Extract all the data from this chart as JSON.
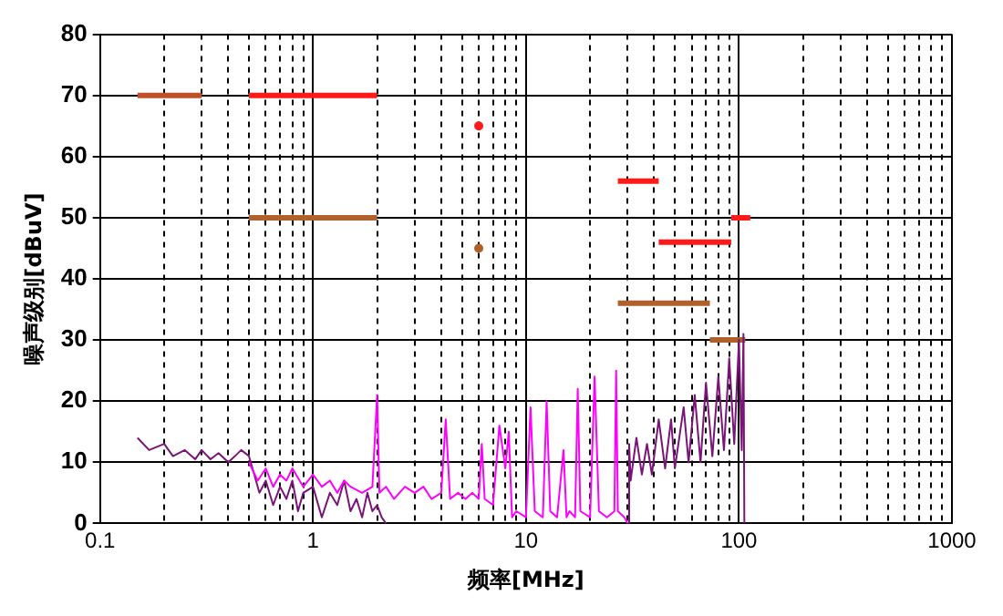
{
  "chart_data": {
    "type": "line",
    "xlabel": "频率[MHz]",
    "ylabel": "噪声级别[dBuV]",
    "log": "x",
    "grid": true,
    "legend": false,
    "line_style": "solid",
    "marker": "none",
    "xlim": [
      0.1,
      1000
    ],
    "ylim": [
      0,
      80
    ],
    "xticks": [
      {
        "value": 0.1,
        "label": "0.1"
      },
      {
        "value": 0.2,
        "label": null
      },
      {
        "value": 0.3,
        "label": null
      },
      {
        "value": 0.4,
        "label": null
      },
      {
        "value": 0.5,
        "label": null
      },
      {
        "value": 0.6,
        "label": null
      },
      {
        "value": 0.7,
        "label": null
      },
      {
        "value": 0.8,
        "label": null
      },
      {
        "value": 0.9,
        "label": null
      },
      1,
      {
        "value": 2,
        "label": null
      },
      {
        "value": 3,
        "label": null
      },
      {
        "value": 4,
        "label": null
      },
      {
        "value": 5,
        "label": null
      },
      {
        "value": 6,
        "label": null
      },
      {
        "value": 7,
        "label": null
      },
      {
        "value": 8,
        "label": null
      },
      {
        "value": 9,
        "label": null
      },
      10,
      {
        "value": 20,
        "label": null
      },
      {
        "value": 30,
        "label": null
      },
      {
        "value": 40,
        "label": null
      },
      {
        "value": 50,
        "label": null
      },
      {
        "value": 60,
        "label": null
      },
      {
        "value": 70,
        "label": null
      },
      {
        "value": 80,
        "label": null
      },
      {
        "value": 90,
        "label": null
      },
      100,
      {
        "value": 200,
        "label": null
      },
      {
        "value": 300,
        "label": null
      },
      {
        "value": 400,
        "label": null
      },
      {
        "value": 500,
        "label": null
      },
      {
        "value": 600,
        "label": null
      },
      {
        "value": 700,
        "label": null
      },
      {
        "value": 800,
        "label": null
      },
      {
        "value": 900,
        "label": null
      },
      1000
    ],
    "yticks": [
      0,
      10,
      20,
      30,
      40,
      50,
      60,
      70,
      80
    ],
    "series": [
      {
        "color": "#ff00ff",
        "x": [
          0.5,
          0.55,
          0.6,
          0.65,
          0.7,
          0.75,
          0.8,
          0.9,
          1,
          1.1,
          1.2,
          1.3,
          1.4,
          1.5,
          1.7,
          1.9,
          2,
          2.05,
          2.2,
          2.4,
          2.7,
          3,
          3.3,
          3.6,
          4,
          4.2,
          4.4,
          4.8,
          5.2,
          5.6,
          6,
          6.2,
          6.4,
          7,
          7.5,
          8,
          8.3,
          8.6,
          9,
          10,
          10.5,
          11,
          12,
          12.5,
          13,
          14,
          15,
          15.5,
          16,
          17,
          17.5,
          18,
          20,
          21,
          22,
          24,
          26,
          26.5,
          27,
          29,
          30
        ],
        "values": [
          10,
          7,
          9,
          6,
          8,
          7,
          9,
          6,
          8,
          6,
          7,
          5,
          7,
          6,
          5,
          6,
          21,
          5,
          6,
          4,
          6,
          5,
          6,
          4,
          5,
          17,
          4,
          5,
          4,
          5,
          4,
          13,
          4,
          3,
          16,
          9,
          15,
          1,
          2,
          1,
          19,
          2,
          1,
          20,
          2,
          1,
          12,
          1,
          2,
          1,
          22,
          2,
          1,
          24,
          2,
          1,
          2,
          25,
          2,
          1,
          0
        ]
      },
      {
        "color": "#7a1478",
        "x": [
          0.15,
          0.17,
          0.2,
          0.22,
          0.25,
          0.28,
          0.3,
          0.33,
          0.36,
          0.4,
          0.43,
          0.46,
          0.5,
          0.53,
          0.56,
          0.6,
          0.65,
          0.7,
          0.75,
          0.8,
          0.85,
          0.9,
          1,
          1.1,
          1.2,
          1.3,
          1.4,
          1.5,
          1.6,
          1.7,
          1.8,
          1.9,
          2,
          2.1,
          2.2,
          10,
          30,
          30.5,
          31,
          33,
          35,
          37,
          39,
          42,
          45,
          48,
          50,
          55,
          58,
          62,
          66,
          70,
          75,
          80,
          85,
          90,
          95,
          100,
          103,
          105,
          106
        ],
        "values": [
          14,
          12,
          13,
          11,
          12,
          10.5,
          12,
          10.5,
          11.5,
          10,
          11,
          12,
          11,
          8,
          5,
          7,
          3,
          6,
          4,
          7,
          2,
          5,
          6,
          1,
          5,
          3,
          7,
          2,
          4,
          1,
          5,
          2,
          3,
          1,
          0,
          null,
          0,
          13,
          7,
          14,
          8,
          13,
          8,
          17,
          9,
          17,
          9,
          19,
          10,
          21,
          10,
          23,
          11,
          24,
          12,
          27,
          13,
          30,
          12,
          31,
          0
        ]
      },
      {
        "type": "line",
        "color": "#c0502a",
        "x": [
          0.15,
          0.3
        ],
        "values": [
          70,
          70
        ]
      },
      {
        "type": "line",
        "color": "#ff1a1a",
        "x": [
          0.5,
          2
        ],
        "values": [
          70,
          70
        ]
      },
      {
        "type": "line",
        "color": "#b0602a",
        "x": [
          0.5,
          2
        ],
        "values": [
          50,
          50
        ]
      },
      {
        "type": "line",
        "color": "#ff1a1a",
        "x": [
          27,
          42
        ],
        "values": [
          56,
          56
        ]
      },
      {
        "type": "line",
        "color": "#ff1a1a",
        "x": [
          42,
          92
        ],
        "values": [
          46,
          46
        ]
      },
      {
        "type": "line",
        "color": "#ff1a1a",
        "x": [
          92,
          113
        ],
        "values": [
          50,
          50
        ]
      },
      {
        "type": "line",
        "color": "#b0602a",
        "x": [
          27,
          73
        ],
        "values": [
          36,
          36
        ]
      },
      {
        "type": "line",
        "color": "#b0602a",
        "x": [
          73,
          107
        ],
        "values": [
          30,
          30
        ]
      },
      {
        "type": "scatter",
        "marker": "circle",
        "color": "#ff1a1a",
        "x": [
          6
        ],
        "values": [
          65
        ]
      },
      {
        "type": "scatter",
        "marker": "circle",
        "color": "#b0602a",
        "x": [
          6
        ],
        "values": [
          45
        ]
      }
    ]
  }
}
